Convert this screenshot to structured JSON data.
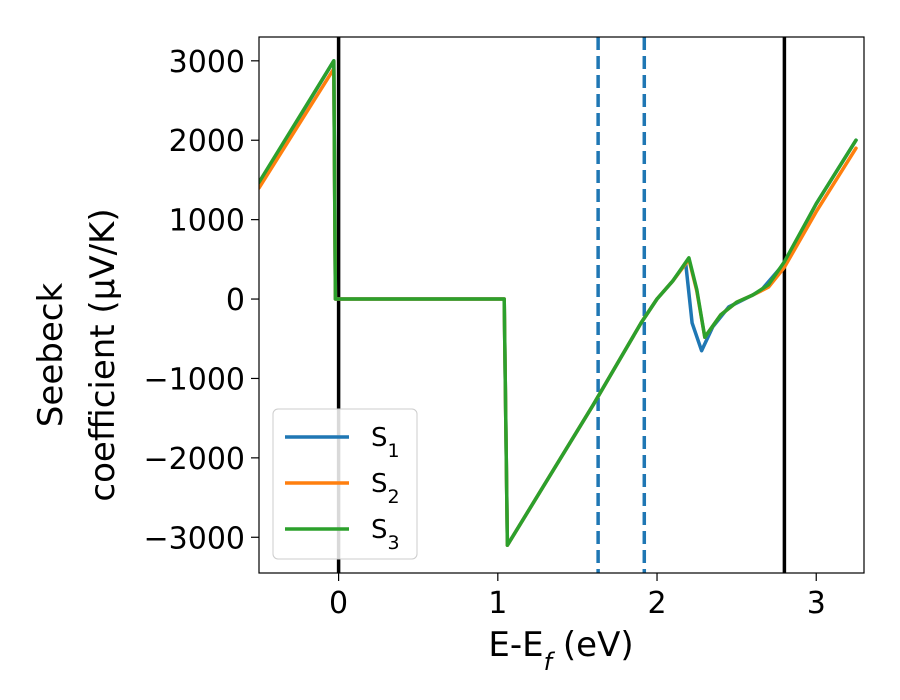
{
  "chart_data": {
    "type": "line",
    "xlabel": "E-E_f (eV)",
    "ylabel_line1": "Seebeck",
    "ylabel_line2": "coefficient  (μV/K)",
    "xlim": [
      -0.5,
      3.3
    ],
    "ylim": [
      -3450,
      3300
    ],
    "xticks": [
      0,
      1,
      2,
      3
    ],
    "xtick_labels": [
      "0",
      "1",
      "2",
      "3"
    ],
    "yticks": [
      3000,
      2000,
      1000,
      0,
      -1000,
      -2000,
      -3000
    ],
    "ytick_labels": [
      "3000",
      "2000",
      "1000",
      "0",
      "−1000",
      "−2000",
      "−3000"
    ],
    "grid": false,
    "legend_position": "lower-left",
    "vlines": [
      {
        "x": 0.0,
        "style": "solid",
        "color": "#000000"
      },
      {
        "x": 1.63,
        "style": "dashed",
        "color": "#1f77b4"
      },
      {
        "x": 1.92,
        "style": "dashed",
        "color": "#1f77b4"
      },
      {
        "x": 2.8,
        "style": "solid",
        "color": "#000000"
      }
    ],
    "series": [
      {
        "name": "S1",
        "name_base": "S",
        "name_sub": "1",
        "color": "#1f77b4",
        "x": [
          -0.5,
          -0.03,
          -0.02,
          1.04,
          1.06,
          1.6,
          1.9,
          2.0,
          2.1,
          2.18,
          2.22,
          2.28,
          2.35,
          2.45,
          2.55,
          2.65,
          2.8,
          3.0,
          3.25
        ],
        "y": [
          1450,
          3000,
          0,
          0,
          -3100,
          -1330,
          -300,
          0,
          230,
          450,
          -300,
          -650,
          -350,
          -100,
          0,
          100,
          450,
          1200,
          2000
        ]
      },
      {
        "name": "S2",
        "name_base": "S",
        "name_sub": "2",
        "color": "#ff7f0e",
        "x": [
          -0.5,
          -0.03,
          -0.02,
          1.04,
          1.06,
          1.6,
          1.9,
          2.0,
          2.1,
          2.2,
          2.25,
          2.3,
          2.4,
          2.5,
          2.6,
          2.7,
          2.8,
          3.0,
          3.25
        ],
        "y": [
          1400,
          2900,
          0,
          0,
          -3100,
          -1330,
          -300,
          0,
          230,
          500,
          100,
          -480,
          -200,
          -40,
          50,
          150,
          400,
          1100,
          1900
        ]
      },
      {
        "name": "S3",
        "name_base": "S",
        "name_sub": "3",
        "color": "#2ca02c",
        "x": [
          -0.5,
          -0.03,
          -0.02,
          1.04,
          1.06,
          1.6,
          1.9,
          2.0,
          2.1,
          2.2,
          2.25,
          2.3,
          2.4,
          2.5,
          2.6,
          2.7,
          2.8,
          3.0,
          3.25
        ],
        "y": [
          1470,
          3000,
          0,
          0,
          -3100,
          -1330,
          -300,
          0,
          230,
          520,
          120,
          -480,
          -200,
          -40,
          50,
          180,
          470,
          1200,
          2000
        ]
      }
    ]
  }
}
